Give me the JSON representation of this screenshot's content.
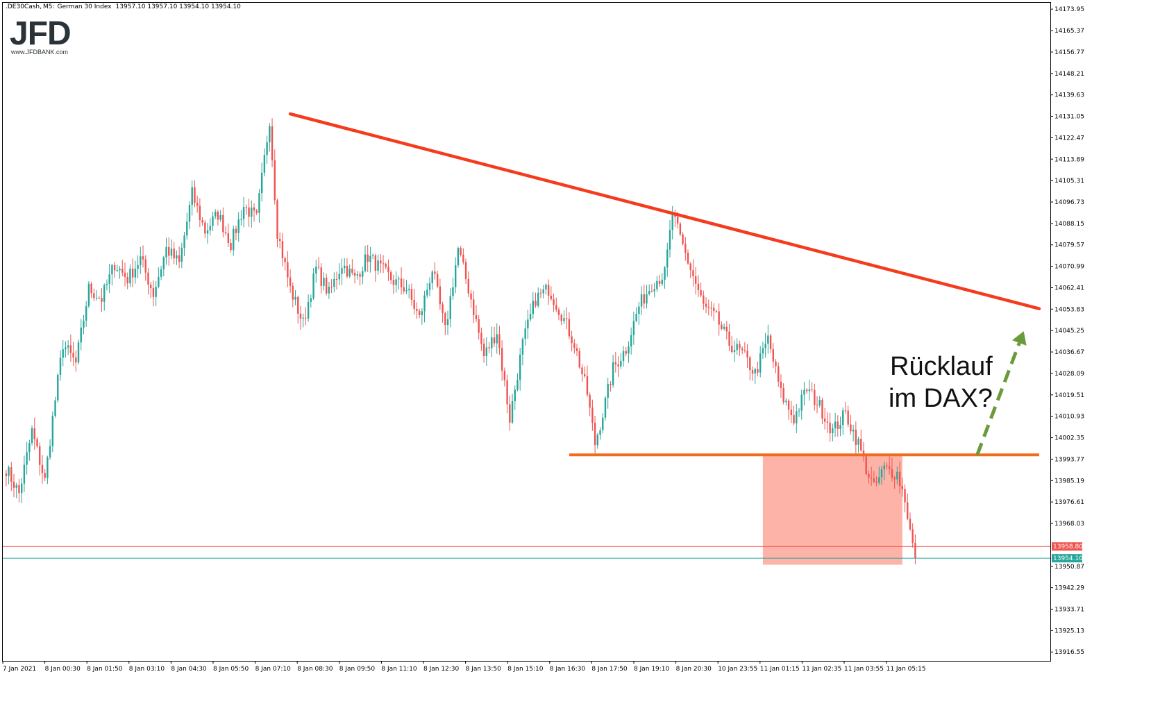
{
  "header": {
    "symbol": ".DE30Cash",
    "timeframe": "M5",
    "instrument": "German 30 Index",
    "ohlc": "13957.10 13957.10 13954.10 13954.10"
  },
  "logo": {
    "text": "JFD",
    "url": "www.JFDBANK.com",
    "color": "#2b3338"
  },
  "annotation": {
    "line1": "Rücklauf",
    "line2": "im DAX?"
  },
  "colors": {
    "bull": "#26a69a",
    "bear": "#ef5350",
    "trendline": "#f53b1e",
    "support": "#f26b1d",
    "zone": "#fca091",
    "arrow": "#6a9b3a",
    "bid_line": "#ef5350",
    "ask_line": "#26a69a"
  },
  "chart_data": {
    "type": "candlestick",
    "y_axis": {
      "ticks": [
        "14173.95",
        "14165.37",
        "14156.77",
        "14148.21",
        "14139.63",
        "14131.05",
        "14122.47",
        "14113.89",
        "14105.31",
        "14096.73",
        "14088.15",
        "14079.57",
        "14070.99",
        "14062.41",
        "14053.83",
        "14045.25",
        "14036.67",
        "14028.09",
        "14019.51",
        "14010.93",
        "14002.35",
        "13993.77",
        "13985.19",
        "13976.61",
        "13968.03",
        "13950.87",
        "13942.29",
        "13933.71",
        "13925.13",
        "13916.55"
      ],
      "range": [
        13913.0,
        14176.5
      ]
    },
    "x_axis": {
      "ticks": [
        "7 Jan 2021",
        "8 Jan 00:30",
        "8 Jan 01:50",
        "8 Jan 03:10",
        "8 Jan 04:30",
        "8 Jan 05:50",
        "8 Jan 07:10",
        "8 Jan 08:30",
        "8 Jan 09:50",
        "8 Jan 11:10",
        "8 Jan 12:30",
        "8 Jan 13:50",
        "8 Jan 15:10",
        "8 Jan 16:30",
        "8 Jan 17:50",
        "8 Jan 19:10",
        "8 Jan 20:30",
        "10 Jan 23:55",
        "11 Jan 01:15",
        "11 Jan 02:35",
        "11 Jan 03:55",
        "11 Jan 05:15"
      ]
    },
    "price_labels": [
      {
        "value": 13958.8,
        "label": "13958.80",
        "color": "#ef5350"
      },
      {
        "value": 13954.1,
        "label": "13954.10",
        "color": "#26a69a"
      }
    ],
    "candles_anchor": [
      [
        0,
        13990
      ],
      [
        5,
        13980
      ],
      [
        10,
        14005
      ],
      [
        15,
        13985
      ],
      [
        18,
        14010
      ],
      [
        22,
        14040
      ],
      [
        27,
        14032
      ],
      [
        32,
        14062
      ],
      [
        37,
        14058
      ],
      [
        42,
        14072
      ],
      [
        47,
        14066
      ],
      [
        52,
        14074
      ],
      [
        57,
        14060
      ],
      [
        62,
        14078
      ],
      [
        67,
        14072
      ],
      [
        72,
        14100
      ],
      [
        77,
        14085
      ],
      [
        82,
        14092
      ],
      [
        87,
        14080
      ],
      [
        92,
        14095
      ],
      [
        97,
        14090
      ],
      [
        102,
        14130
      ],
      [
        105,
        14085
      ],
      [
        110,
        14062
      ],
      [
        115,
        14048
      ],
      [
        120,
        14070
      ],
      [
        125,
        14060
      ],
      [
        130,
        14072
      ],
      [
        135,
        14066
      ],
      [
        140,
        14075
      ],
      [
        145,
        14070
      ],
      [
        150,
        14065
      ],
      [
        155,
        14062
      ],
      [
        160,
        14050
      ],
      [
        165,
        14070
      ],
      [
        170,
        14045
      ],
      [
        175,
        14078
      ],
      [
        180,
        14058
      ],
      [
        185,
        14035
      ],
      [
        190,
        14045
      ],
      [
        195,
        14010
      ],
      [
        200,
        14040
      ],
      [
        205,
        14058
      ],
      [
        210,
        14062
      ],
      [
        215,
        14052
      ],
      [
        220,
        14040
      ],
      [
        225,
        14020
      ],
      [
        228,
        14000
      ],
      [
        231,
        14012
      ],
      [
        235,
        14030
      ],
      [
        240,
        14038
      ],
      [
        245,
        14055
      ],
      [
        250,
        14064
      ],
      [
        255,
        14068
      ],
      [
        258,
        14092
      ],
      [
        261,
        14082
      ],
      [
        265,
        14070
      ],
      [
        270,
        14055
      ],
      [
        275,
        14050
      ],
      [
        280,
        14040
      ],
      [
        285,
        14036
      ],
      [
        290,
        14028
      ],
      [
        295,
        14042
      ],
      [
        300,
        14020
      ],
      [
        305,
        14010
      ],
      [
        310,
        14022
      ],
      [
        315,
        14015
      ],
      [
        320,
        14005
      ],
      [
        325,
        14012
      ],
      [
        330,
        14000
      ],
      [
        333,
        13990
      ],
      [
        336,
        13982
      ],
      [
        340,
        13990
      ],
      [
        345,
        13988
      ],
      [
        348,
        13978
      ],
      [
        350,
        13965
      ],
      [
        352,
        13954
      ]
    ],
    "trendline": {
      "from": {
        "bar": 110,
        "value": 14132
      },
      "to": {
        "bar": 400,
        "value": 14054
      }
    },
    "support": {
      "value": 13995.5,
      "from_bar": 218,
      "to_bar": 400
    },
    "zone": {
      "from_bar": 293,
      "to_bar": 347,
      "top": 13995.5,
      "bottom": 13951.5
    },
    "arrow": {
      "from": {
        "bar": 376,
        "value": 13995.5
      },
      "to": {
        "bar": 394,
        "value": 14045
      }
    }
  }
}
